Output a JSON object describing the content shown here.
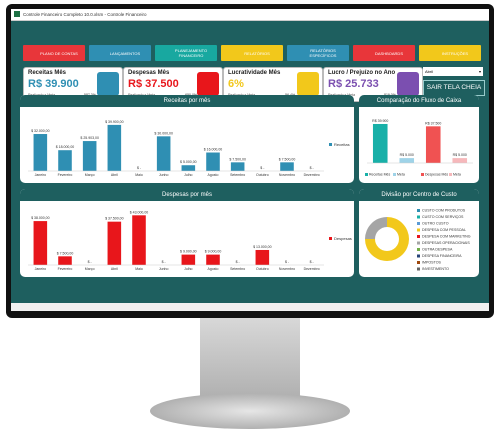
{
  "window": {
    "title": "Controle Financeiro Completo 10.0.xlsm - Controle Financeiro"
  },
  "nav": [
    "PLANO DE CONTAS",
    "LANÇAMENTOS",
    "PLANEJAMENTO FINANCEIRO",
    "RELATÓRIOS",
    "RELATÓRIOS ESPECÍFICOS",
    "DASHBOARDS",
    "INSTRUÇÕES"
  ],
  "kpis": [
    {
      "label": "Receitas Mês",
      "value": "R$ 39.900",
      "note": "Realizado x Meta",
      "pct": "587,3%"
    },
    {
      "label": "Despesas Mês",
      "value": "R$ 37.500",
      "note": "Realizado x Meta",
      "pct": "-650,0%"
    },
    {
      "label": "Lucratividade Mês",
      "value": "6%",
      "note": "Realizado x Meta",
      "pct": "-56,4%"
    },
    {
      "label": "Lucro / Prejuízo no Ano",
      "value": "R$ 25.733",
      "note": "Realizado x Meta",
      "pct": "819,0%"
    }
  ],
  "month_select": "Abril",
  "exit_button": "SAIR TELA CHEIA",
  "chart_data": [
    {
      "type": "bar",
      "title": "Receitas por mês",
      "legend": "Receitas",
      "color": "#2f8fb3",
      "categories": [
        "Janeiro",
        "Fevereiro",
        "Março",
        "Abril",
        "Maio",
        "Junho",
        "Julho",
        "Agosto",
        "Setembro",
        "Outubro",
        "Novembro",
        "Dezembro"
      ],
      "values": [
        32000,
        18000,
        25903,
        39900,
        0,
        30000,
        5000,
        16000,
        7500,
        0,
        7500,
        0
      ],
      "value_labels": [
        "$ 32.000,00",
        "$ 18.000,00",
        "$ 25.903,00",
        "$ 39.900,00",
        "$ -",
        "$ 30.000,00",
        "$ 5.000,00",
        "$ 16.000,00",
        "$ 7.500,00",
        "$ -",
        "$ 7.500,00",
        "$ -"
      ],
      "ylim": [
        0,
        45000
      ]
    },
    {
      "type": "bar",
      "title": "Despesas por mês",
      "legend": "Despesas",
      "color": "#e8161b",
      "categories": [
        "Janeiro",
        "Fevereiro",
        "Março",
        "Abril",
        "Maio",
        "Junho",
        "Julho",
        "Agosto",
        "Setembro",
        "Outubro",
        "Novembro",
        "Dezembro"
      ],
      "values": [
        38000,
        7500,
        0,
        37500,
        43000,
        0,
        9000,
        9000,
        0,
        13000,
        0,
        0
      ],
      "value_labels": [
        "$ 38.000,00",
        "$ 7.500,00",
        "$ -",
        "$ 37.500,00",
        "$ 43.000,00",
        "$ -",
        "$ 9.000,00",
        "$ 9.000,00",
        "$ -",
        "$ 13.000,00",
        "$ -",
        "$ -"
      ],
      "ylim": [
        0,
        45000
      ]
    },
    {
      "type": "bar",
      "title": "Comparação do Fluxo de Caixa",
      "legend_items": [
        "Receitas Mês",
        "Meta",
        "Despesas Mês",
        "Meta"
      ],
      "categories": [
        "Receitas Mês",
        "Meta",
        "Despesas Mês",
        "Meta"
      ],
      "values": [
        39900,
        5000,
        37500,
        5000
      ],
      "value_labels": [
        "R$ 39.900",
        "R$ 5.000",
        "R$ 37.500",
        "R$ 5.000"
      ],
      "colors": [
        "#18b0a8",
        "#9fd3e8",
        "#f05252",
        "#f6b8bb"
      ],
      "ylim": [
        0,
        45000
      ]
    },
    {
      "type": "pie",
      "title": "Divisão por Centro de Custo",
      "donut": true,
      "categories": [
        "CUSTO COM PRODUTOS",
        "CUSTO COM SERVIÇOS",
        "OUTRO CUSTO",
        "DESPESA COM PESSOAL",
        "DESPESA COM MARKETING",
        "DESPESAS OPERACIONAIS",
        "OUTRA DESPESA",
        "DESPESA FINANCEIRA",
        "IMPOSTOS",
        "INVESTIMENTO"
      ],
      "values": [
        0,
        0,
        0,
        75,
        0,
        25,
        0,
        0,
        0,
        0
      ],
      "colors": [
        "#2f8fb3",
        "#18b0a8",
        "#5b9bd5",
        "#f2c81b",
        "#e8161b",
        "#a5a5a5",
        "#70ad47",
        "#264478",
        "#9e480e",
        "#636363"
      ]
    }
  ]
}
